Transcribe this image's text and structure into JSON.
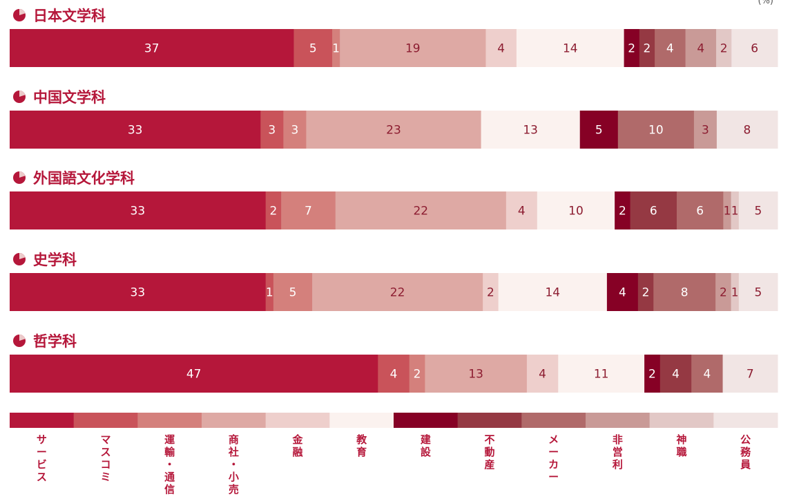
{
  "unit_label": "(%)",
  "colors": {
    "title": "#B5173A",
    "categories": [
      "#B5173A",
      "#C9535A",
      "#D4807C",
      "#DEA9A4",
      "#EECFCC",
      "#FBF2EF",
      "#860125",
      "#953943",
      "#B06A6A",
      "#C99A97",
      "#E2C8C6",
      "#F1E5E4"
    ],
    "label_light": "#FFFFFF",
    "label_dark": "#8C1C30"
  },
  "chart_data": {
    "type": "bar",
    "orientation": "horizontal-stacked",
    "unit": "%",
    "categories": [
      "サービス",
      "マスコミ",
      "運輸・通信",
      "商社・小売",
      "金融",
      "教育",
      "建設",
      "不動産",
      "メーカー",
      "非営利",
      "神職",
      "公務員"
    ],
    "legend_labels": [
      "サービス",
      "マスコミ",
      "運輸・通信",
      "商社・小売",
      "金融",
      "教育",
      "建設",
      "不動産",
      "メーカー",
      "非営利",
      "神職",
      "公務員"
    ],
    "series": [
      {
        "name": "日本文学科",
        "values": [
          37,
          5,
          1,
          19,
          4,
          14,
          2,
          2,
          4,
          4,
          2,
          6
        ]
      },
      {
        "name": "中国文学科",
        "values": [
          33,
          3,
          3,
          23,
          0,
          13,
          5,
          0,
          10,
          3,
          0,
          8
        ]
      },
      {
        "name": "外国語文化学科",
        "values": [
          33,
          2,
          7,
          22,
          4,
          10,
          2,
          6,
          6,
          1,
          1,
          5
        ]
      },
      {
        "name": "史学科",
        "values": [
          33,
          1,
          5,
          22,
          2,
          14,
          4,
          2,
          8,
          2,
          1,
          5
        ]
      },
      {
        "name": "哲学科",
        "values": [
          47,
          4,
          2,
          13,
          4,
          11,
          2,
          4,
          4,
          0,
          0,
          7
        ]
      }
    ]
  }
}
